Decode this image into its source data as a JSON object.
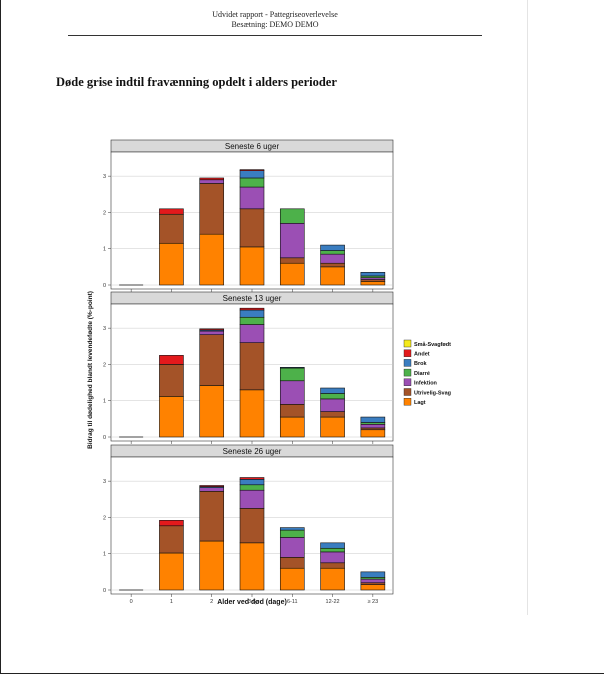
{
  "header": {
    "line1": "Udvidet rapport - Pattegriseoverlevelse",
    "line2": "Besætning: DEMO DEMO"
  },
  "section_title": "Døde grise indtil fravænning opdelt i alders perioder",
  "chart_data": {
    "type": "bar",
    "stacked": true,
    "ylabel": "Bidrag til dødelighed blandt levendefødte (%-point)",
    "xlabel": "Alder ved død (dage)",
    "categories": [
      "0",
      "1",
      "2",
      "3-5",
      "6-11",
      "12-22",
      "≥ 23"
    ],
    "ylim": [
      0,
      3.5
    ],
    "yticks": [
      0,
      1,
      2,
      3
    ],
    "legend_position": "right",
    "colors": {
      "Små-Svagfødt": "#f4ea1c",
      "Andet": "#e31a1c",
      "Brok": "#3a7dc0",
      "Diarré": "#4db14a",
      "Infektion": "#9b4fb4",
      "Utrivelig-Svag": "#a45328",
      "Lagt": "#ff8200"
    },
    "stack_order": [
      "Lagt",
      "Utrivelig-Svag",
      "Infektion",
      "Diarré",
      "Brok",
      "Andet",
      "Små-Svagfødt"
    ],
    "legend_order": [
      "Små-Svagfødt",
      "Andet",
      "Brok",
      "Diarré",
      "Infektion",
      "Utrivelig-Svag",
      "Lagt"
    ],
    "panels": [
      {
        "title": "Seneste 6 uger",
        "series": [
          {
            "name": "Lagt",
            "values": [
              0,
              1.15,
              1.4,
              1.05,
              0.6,
              0.5,
              0.1
            ]
          },
          {
            "name": "Utrivelig-Svag",
            "values": [
              0,
              0.8,
              1.4,
              1.05,
              0.15,
              0.1,
              0.05
            ]
          },
          {
            "name": "Infektion",
            "values": [
              0,
              0,
              0.1,
              0.6,
              0.95,
              0.25,
              0.05
            ]
          },
          {
            "name": "Diarré",
            "values": [
              0,
              0,
              0,
              0.25,
              0.4,
              0.1,
              0.05
            ]
          },
          {
            "name": "Brok",
            "values": [
              0,
              0,
              0,
              0.2,
              0,
              0.15,
              0.1
            ]
          },
          {
            "name": "Andet",
            "values": [
              0,
              0.15,
              0.05,
              0.03,
              0,
              0,
              0
            ]
          },
          {
            "name": "Små-Svagfødt",
            "values": [
              0,
              0,
              0,
              0,
              0,
              0,
              0
            ]
          }
        ]
      },
      {
        "title": "Seneste 13 uger",
        "series": [
          {
            "name": "Lagt",
            "values": [
              0,
              1.12,
              1.42,
              1.3,
              0.55,
              0.55,
              0.2
            ]
          },
          {
            "name": "Utrivelig-Svag",
            "values": [
              0,
              0.88,
              1.4,
              1.3,
              0.35,
              0.15,
              0.05
            ]
          },
          {
            "name": "Infektion",
            "values": [
              0,
              0,
              0.1,
              0.5,
              0.65,
              0.35,
              0.1
            ]
          },
          {
            "name": "Diarré",
            "values": [
              0,
              0,
              0,
              0.2,
              0.35,
              0.15,
              0.05
            ]
          },
          {
            "name": "Brok",
            "values": [
              0,
              0,
              0.03,
              0.2,
              0.02,
              0.15,
              0.15
            ]
          },
          {
            "name": "Andet",
            "values": [
              0,
              0.25,
              0.03,
              0.05,
              0,
              0,
              0
            ]
          },
          {
            "name": "Små-Svagfødt",
            "values": [
              0,
              0,
              0,
              0,
              0,
              0,
              0
            ]
          }
        ]
      },
      {
        "title": "Seneste 26 uger",
        "series": [
          {
            "name": "Lagt",
            "values": [
              0,
              1.02,
              1.35,
              1.3,
              0.6,
              0.6,
              0.15
            ]
          },
          {
            "name": "Utrivelig-Svag",
            "values": [
              0,
              0.75,
              1.37,
              0.95,
              0.3,
              0.15,
              0.05
            ]
          },
          {
            "name": "Infektion",
            "values": [
              0,
              0,
              0.1,
              0.5,
              0.55,
              0.3,
              0.1
            ]
          },
          {
            "name": "Diarré",
            "values": [
              0,
              0,
              0,
              0.15,
              0.2,
              0.1,
              0.05
            ]
          },
          {
            "name": "Brok",
            "values": [
              0,
              0,
              0.03,
              0.15,
              0.07,
              0.15,
              0.15
            ]
          },
          {
            "name": "Andet",
            "values": [
              0,
              0.15,
              0.03,
              0.05,
              0,
              0,
              0
            ]
          },
          {
            "name": "Små-Svagfødt",
            "values": [
              0,
              0,
              0,
              0,
              0,
              0,
              0
            ]
          }
        ]
      }
    ]
  }
}
